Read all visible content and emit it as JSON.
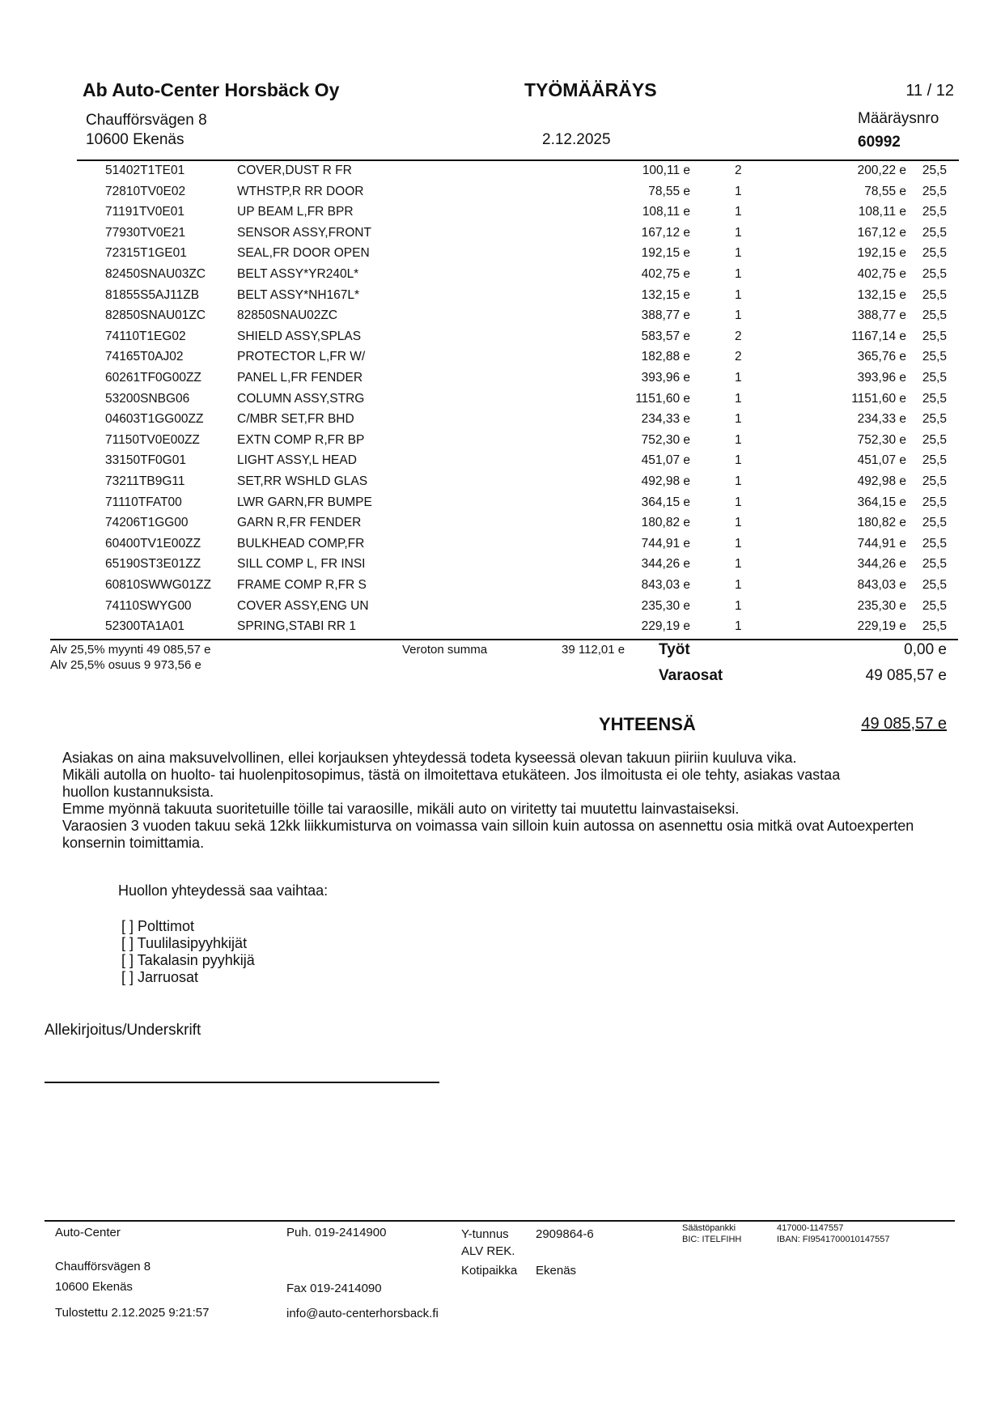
{
  "header": {
    "company": "Ab Auto-Center Horsbäck Oy",
    "doc_title": "TYÖMÄÄRÄYS",
    "page": "11 / 12",
    "address_line1": "Chaufförsvägen 8",
    "address_line2": "10600 Ekenäs",
    "date": "2.12.2025",
    "order_no_label": "Määräysnro",
    "order_no": "60992"
  },
  "rows": [
    {
      "code": "51402T1TE01",
      "desc": "COVER,DUST R FR",
      "price": "100,11 e",
      "qty": "2",
      "total": "200,22 e",
      "vat": "25,5"
    },
    {
      "code": "72810TV0E02",
      "desc": "WTHSTP,R RR DOOR",
      "price": "78,55 e",
      "qty": "1",
      "total": "78,55 e",
      "vat": "25,5"
    },
    {
      "code": "71191TV0E01",
      "desc": "UP BEAM L,FR BPR",
      "price": "108,11 e",
      "qty": "1",
      "total": "108,11 e",
      "vat": "25,5"
    },
    {
      "code": "77930TV0E21",
      "desc": "SENSOR ASSY,FRONT",
      "price": "167,12 e",
      "qty": "1",
      "total": "167,12 e",
      "vat": "25,5"
    },
    {
      "code": "72315T1GE01",
      "desc": "SEAL,FR DOOR OPEN",
      "price": "192,15 e",
      "qty": "1",
      "total": "192,15 e",
      "vat": "25,5"
    },
    {
      "code": "82450SNAU03ZC",
      "desc": "BELT ASSY*YR240L*",
      "price": "402,75 e",
      "qty": "1",
      "total": "402,75 e",
      "vat": "25,5"
    },
    {
      "code": "81855S5AJ11ZB",
      "desc": "BELT ASSY*NH167L*",
      "price": "132,15 e",
      "qty": "1",
      "total": "132,15 e",
      "vat": "25,5"
    },
    {
      "code": "82850SNAU01ZC",
      "desc": "82850SNAU02ZC",
      "price": "388,77 e",
      "qty": "1",
      "total": "388,77 e",
      "vat": "25,5"
    },
    {
      "code": "74110T1EG02",
      "desc": "SHIELD ASSY,SPLAS",
      "price": "583,57 e",
      "qty": "2",
      "total": "1167,14 e",
      "vat": "25,5"
    },
    {
      "code": "74165T0AJ02",
      "desc": "PROTECTOR L,FR W/",
      "price": "182,88 e",
      "qty": "2",
      "total": "365,76 e",
      "vat": "25,5"
    },
    {
      "code": "60261TF0G00ZZ",
      "desc": "PANEL L,FR FENDER",
      "price": "393,96 e",
      "qty": "1",
      "total": "393,96 e",
      "vat": "25,5"
    },
    {
      "code": "53200SNBG06",
      "desc": "COLUMN ASSY,STRG",
      "price": "1151,60 e",
      "qty": "1",
      "total": "1151,60 e",
      "vat": "25,5"
    },
    {
      "code": "04603T1GG00ZZ",
      "desc": "C/MBR SET,FR BHD",
      "price": "234,33 e",
      "qty": "1",
      "total": "234,33 e",
      "vat": "25,5"
    },
    {
      "code": "71150TV0E00ZZ",
      "desc": "EXTN COMP R,FR BP",
      "price": "752,30 e",
      "qty": "1",
      "total": "752,30 e",
      "vat": "25,5"
    },
    {
      "code": "33150TF0G01",
      "desc": "LIGHT ASSY,L HEAD",
      "price": "451,07 e",
      "qty": "1",
      "total": "451,07 e",
      "vat": "25,5"
    },
    {
      "code": "73211TB9G11",
      "desc": "SET,RR WSHLD GLAS",
      "price": "492,98 e",
      "qty": "1",
      "total": "492,98 e",
      "vat": "25,5"
    },
    {
      "code": "71110TFAT00",
      "desc": "LWR GARN,FR BUMPE",
      "price": "364,15 e",
      "qty": "1",
      "total": "364,15 e",
      "vat": "25,5"
    },
    {
      "code": "74206T1GG00",
      "desc": "GARN R,FR FENDER",
      "price": "180,82 e",
      "qty": "1",
      "total": "180,82 e",
      "vat": "25,5"
    },
    {
      "code": "60400TV1E00ZZ",
      "desc": "BULKHEAD COMP,FR",
      "price": "744,91 e",
      "qty": "1",
      "total": "744,91 e",
      "vat": "25,5"
    },
    {
      "code": "65190ST3E01ZZ",
      "desc": "SILL COMP L, FR INSI",
      "price": "344,26 e",
      "qty": "1",
      "total": "344,26 e",
      "vat": "25,5"
    },
    {
      "code": "60810SWWG01ZZ",
      "desc": "FRAME COMP R,FR S",
      "price": "843,03 e",
      "qty": "1",
      "total": "843,03 e",
      "vat": "25,5"
    },
    {
      "code": "74110SWYG00",
      "desc": "COVER ASSY,ENG UN",
      "price": "235,30 e",
      "qty": "1",
      "total": "235,30 e",
      "vat": "25,5"
    },
    {
      "code": "52300TA1A01",
      "desc": "SPRING,STABI RR 1",
      "price": "229,19 e",
      "qty": "1",
      "total": "229,19 e",
      "vat": "25,5"
    }
  ],
  "summary": {
    "vat_sales": "Alv 25,5% myynti 49 085,57 e",
    "vat_share": "Alv 25,5% osuus 9 973,56 e",
    "net_label": "Veroton summa",
    "net_value": "39 112,01 e",
    "labour_label": "Työt",
    "labour_value": "0,00 e",
    "parts_label": "Varaosat",
    "parts_value": "49 085,57 e",
    "total_label": "YHTEENSÄ",
    "total_value": "49 085,57 e"
  },
  "terms": [
    "Asiakas on aina maksuvelvollinen, ellei korjauksen yhteydessä todeta kyseessä olevan takuun piiriin kuuluva vika.",
    "Mikäli autolla on huolto- tai huolenpitosopimus, tästä on ilmoitettava etukäteen. Jos ilmoitusta ei ole tehty, asiakas vastaa huollon kustannuksista.",
    "Emme myönnä takuuta suoritetuille töille tai varaosille, mikäli auto on viritetty tai muutettu lainvastaiseksi.",
    "Varaosien 3 vuoden takuu sekä 12kk liikkumisturva on voimassa vain silloin kuin autossa on asennettu osia mitkä ovat Autoexperten konsernin toimittamia."
  ],
  "replace": {
    "heading": "Huollon yhteydessä saa vaihtaa:",
    "items": [
      "[ ] Polttimot",
      "[ ] Tuulilasipyyhkijät",
      "[ ] Takalasin pyyhkijä",
      "[ ] Jarruosat"
    ]
  },
  "signature_label": "Allekirjoitus/Underskrift",
  "footer": {
    "name": "Auto-Center",
    "street": "Chaufförsvägen 8",
    "city": "10600 Ekenäs",
    "printed": "Tulostettu 2.12.2025 9:21:57",
    "phone": "Puh. 019-2414900",
    "fax": "Fax  019-2414090",
    "email": "info@auto-centerhorsback.fi",
    "ytunnus_label": "Y-tunnus",
    "ytunnus": "2909864-6",
    "alv": "ALV REK.",
    "domicile_label": "Kotipaikka",
    "domicile": "Ekenäs",
    "bank": "Säästöpankki",
    "bic": "BIC: ITELFIHH",
    "account": "417000-1147557",
    "iban": "IBAN: FI9541700010147557"
  }
}
